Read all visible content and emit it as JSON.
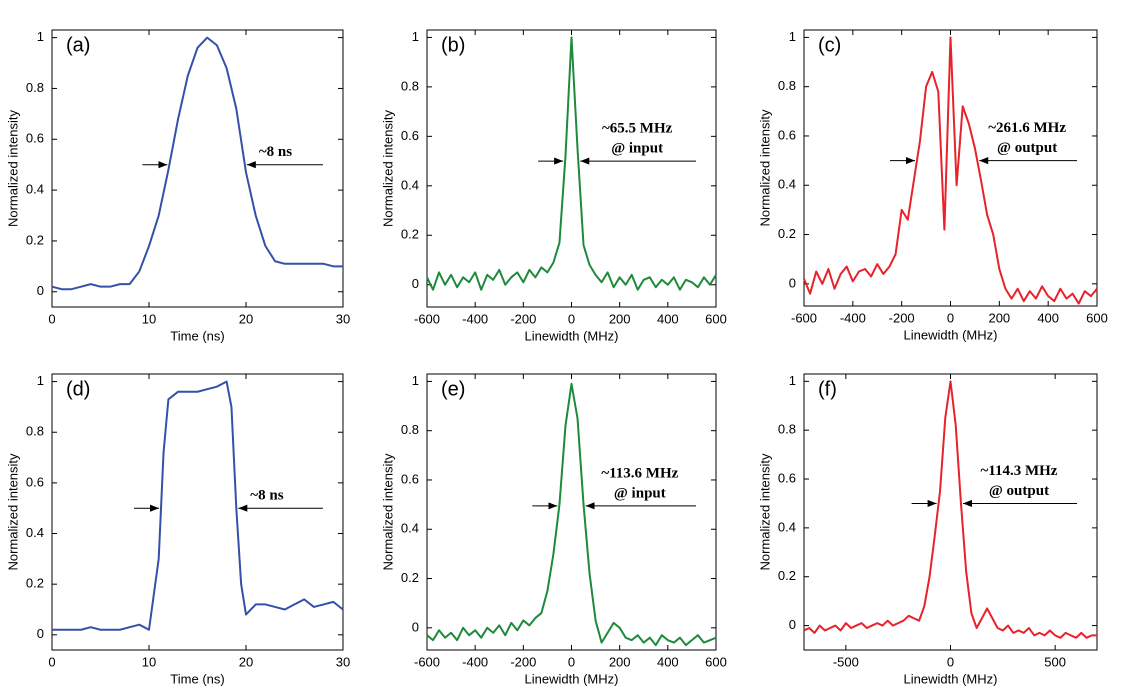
{
  "chart_data": [
    {
      "type": "line",
      "panel_label": "(a)",
      "xlabel": "Time (ns)",
      "ylabel": "Normalized intensity",
      "color": "#3550a8",
      "xlim": [
        0,
        30
      ],
      "ylim": [
        -0.06,
        1.03
      ],
      "xticks": [
        0,
        10,
        20,
        30
      ],
      "yticks": [
        0,
        0.2,
        0.4,
        0.6,
        0.8,
        1
      ],
      "annotation": [
        "~8 ns"
      ],
      "x": [
        0,
        1,
        2,
        3,
        4,
        5,
        6,
        7,
        8,
        9,
        10,
        11,
        12,
        13,
        14,
        15,
        16,
        17,
        18,
        19,
        20,
        21,
        22,
        23,
        24,
        25,
        26,
        27,
        28,
        29,
        30
      ],
      "values": [
        0.02,
        0.01,
        0.01,
        0.02,
        0.03,
        0.02,
        0.02,
        0.03,
        0.03,
        0.08,
        0.18,
        0.3,
        0.48,
        0.68,
        0.85,
        0.96,
        1.0,
        0.97,
        0.88,
        0.72,
        0.47,
        0.3,
        0.18,
        0.12,
        0.11,
        0.11,
        0.11,
        0.11,
        0.11,
        0.1,
        0.1
      ]
    },
    {
      "type": "line",
      "panel_label": "(b)",
      "xlabel": "Linewidth (MHz)",
      "ylabel": "Normalized intensity",
      "color": "#1e8a3c",
      "xlim": [
        -600,
        600
      ],
      "ylim": [
        -0.09,
        1.03
      ],
      "xticks": [
        -600,
        -400,
        -200,
        0,
        200,
        400,
        600
      ],
      "yticks": [
        0,
        0.2,
        0.4,
        0.6,
        0.8,
        1
      ],
      "annotation": [
        "~65.5 MHz",
        "@ input"
      ],
      "x": [
        -600,
        -575,
        -550,
        -525,
        -500,
        -475,
        -450,
        -425,
        -400,
        -375,
        -350,
        -325,
        -300,
        -275,
        -250,
        -225,
        -200,
        -175,
        -150,
        -125,
        -100,
        -75,
        -50,
        -25,
        0,
        25,
        50,
        75,
        100,
        125,
        150,
        175,
        200,
        225,
        250,
        275,
        300,
        325,
        350,
        375,
        400,
        425,
        450,
        475,
        500,
        525,
        550,
        575,
        600
      ],
      "values": [
        0.03,
        -0.02,
        0.05,
        0.0,
        0.04,
        -0.01,
        0.03,
        0.01,
        0.05,
        -0.02,
        0.04,
        0.02,
        0.06,
        0.0,
        0.03,
        0.05,
        0.01,
        0.06,
        0.03,
        0.07,
        0.05,
        0.09,
        0.17,
        0.52,
        1.0,
        0.55,
        0.16,
        0.08,
        0.04,
        0.01,
        0.05,
        -0.01,
        0.03,
        0.0,
        0.04,
        -0.02,
        0.02,
        0.03,
        -0.01,
        0.02,
        0.0,
        0.03,
        -0.02,
        0.02,
        0.01,
        -0.01,
        0.03,
        0.0,
        0.04
      ]
    },
    {
      "type": "line",
      "panel_label": "(c)",
      "xlabel": "Linewidth (MHz)",
      "ylabel": "Normalized intensity",
      "color": "#e8222a",
      "xlim": [
        -600,
        600
      ],
      "ylim": [
        -0.09,
        1.03
      ],
      "xticks": [
        -600,
        -400,
        -200,
        0,
        200,
        400,
        600
      ],
      "yticks": [
        0,
        0.2,
        0.4,
        0.6,
        0.8,
        1
      ],
      "annotation": [
        "~261.6 MHz",
        "@ output"
      ],
      "x": [
        -600,
        -575,
        -550,
        -525,
        -500,
        -475,
        -450,
        -425,
        -400,
        -375,
        -350,
        -325,
        -300,
        -275,
        -250,
        -225,
        -200,
        -175,
        -150,
        -125,
        -100,
        -75,
        -50,
        -25,
        0,
        25,
        50,
        75,
        100,
        125,
        150,
        175,
        200,
        225,
        250,
        275,
        300,
        325,
        350,
        375,
        400,
        425,
        450,
        475,
        500,
        525,
        550,
        575,
        600
      ],
      "values": [
        0.02,
        -0.04,
        0.05,
        0.0,
        0.06,
        -0.02,
        0.04,
        0.07,
        0.01,
        0.05,
        0.06,
        0.03,
        0.08,
        0.04,
        0.07,
        0.12,
        0.3,
        0.26,
        0.42,
        0.58,
        0.8,
        0.86,
        0.78,
        0.22,
        1.0,
        0.4,
        0.72,
        0.65,
        0.55,
        0.42,
        0.28,
        0.2,
        0.06,
        -0.02,
        -0.06,
        -0.02,
        -0.07,
        -0.03,
        -0.06,
        -0.01,
        -0.05,
        -0.07,
        -0.02,
        -0.06,
        -0.04,
        -0.08,
        -0.03,
        -0.05,
        -0.02
      ]
    },
    {
      "type": "line",
      "panel_label": "(d)",
      "xlabel": "Time (ns)",
      "ylabel": "Normalized intensity",
      "color": "#3550a8",
      "xlim": [
        0,
        30
      ],
      "ylim": [
        -0.06,
        1.03
      ],
      "xticks": [
        0,
        10,
        20,
        30
      ],
      "yticks": [
        0,
        0.2,
        0.4,
        0.6,
        0.8,
        1
      ],
      "annotation": [
        "~8 ns"
      ],
      "x": [
        0,
        1,
        2,
        3,
        4,
        5,
        6,
        7,
        8,
        9,
        10,
        11,
        11.5,
        12,
        13,
        14,
        15,
        16,
        17,
        18,
        18.5,
        19,
        19.5,
        20,
        21,
        22,
        23,
        24,
        25,
        26,
        27,
        28,
        29,
        30
      ],
      "values": [
        0.02,
        0.02,
        0.02,
        0.02,
        0.03,
        0.02,
        0.02,
        0.02,
        0.03,
        0.04,
        0.02,
        0.3,
        0.72,
        0.93,
        0.96,
        0.96,
        0.96,
        0.97,
        0.98,
        1.0,
        0.9,
        0.5,
        0.2,
        0.08,
        0.12,
        0.12,
        0.11,
        0.1,
        0.12,
        0.14,
        0.11,
        0.12,
        0.13,
        0.1
      ]
    },
    {
      "type": "line",
      "panel_label": "(e)",
      "xlabel": "Linewidth (MHz)",
      "ylabel": "Normalized intensity",
      "color": "#1e8a3c",
      "xlim": [
        -600,
        600
      ],
      "ylim": [
        -0.09,
        1.03
      ],
      "xticks": [
        -600,
        -400,
        -200,
        0,
        200,
        400,
        600
      ],
      "yticks": [
        0,
        0.2,
        0.4,
        0.6,
        0.8,
        1
      ],
      "annotation": [
        "~113.6 MHz",
        "@ input"
      ],
      "x": [
        -600,
        -575,
        -550,
        -525,
        -500,
        -475,
        -450,
        -425,
        -400,
        -375,
        -350,
        -325,
        -300,
        -275,
        -250,
        -225,
        -200,
        -175,
        -150,
        -125,
        -100,
        -75,
        -50,
        -25,
        0,
        25,
        50,
        75,
        100,
        125,
        150,
        175,
        200,
        225,
        250,
        275,
        300,
        325,
        350,
        375,
        400,
        425,
        450,
        475,
        500,
        525,
        550,
        575,
        600
      ],
      "values": [
        -0.03,
        -0.05,
        -0.01,
        -0.04,
        -0.02,
        -0.05,
        0.0,
        -0.03,
        -0.01,
        -0.04,
        0.0,
        -0.02,
        0.01,
        -0.03,
        0.02,
        -0.01,
        0.03,
        0.01,
        0.04,
        0.06,
        0.15,
        0.3,
        0.5,
        0.82,
        0.99,
        0.85,
        0.5,
        0.22,
        0.03,
        -0.06,
        -0.02,
        0.02,
        0.0,
        -0.04,
        -0.05,
        -0.03,
        -0.06,
        -0.04,
        -0.07,
        -0.03,
        -0.05,
        -0.06,
        -0.04,
        -0.07,
        -0.05,
        -0.03,
        -0.06,
        -0.05,
        -0.04
      ]
    },
    {
      "type": "line",
      "panel_label": "(f)",
      "xlabel": "Linewidth (MHz)",
      "ylabel": "Normalized intensity",
      "color": "#e8222a",
      "xlim": [
        -700,
        700
      ],
      "ylim": [
        -0.1,
        1.03
      ],
      "xticks": [
        -500,
        0,
        500
      ],
      "yticks": [
        0,
        0.2,
        0.4,
        0.6,
        0.8,
        1
      ],
      "annotation": [
        "~114.3 MHz",
        "@ output"
      ],
      "x": [
        -700,
        -675,
        -650,
        -625,
        -600,
        -575,
        -550,
        -525,
        -500,
        -475,
        -450,
        -425,
        -400,
        -375,
        -350,
        -325,
        -300,
        -275,
        -250,
        -225,
        -200,
        -175,
        -150,
        -125,
        -100,
        -75,
        -50,
        -25,
        0,
        25,
        50,
        75,
        100,
        125,
        150,
        175,
        200,
        225,
        250,
        275,
        300,
        325,
        350,
        375,
        400,
        425,
        450,
        475,
        500,
        525,
        550,
        575,
        600,
        625,
        650,
        675,
        700
      ],
      "values": [
        -0.02,
        -0.01,
        -0.03,
        0.0,
        -0.02,
        -0.01,
        0.0,
        -0.02,
        0.01,
        -0.01,
        0.0,
        0.01,
        -0.01,
        0.0,
        0.01,
        0.0,
        0.02,
        0.0,
        0.01,
        0.02,
        0.04,
        0.03,
        0.02,
        0.08,
        0.2,
        0.37,
        0.55,
        0.85,
        1.0,
        0.82,
        0.5,
        0.22,
        0.05,
        -0.01,
        0.03,
        0.07,
        0.03,
        -0.01,
        -0.02,
        0.0,
        -0.03,
        -0.02,
        -0.03,
        -0.01,
        -0.04,
        -0.03,
        -0.04,
        -0.02,
        -0.04,
        -0.05,
        -0.03,
        -0.04,
        -0.05,
        -0.03,
        -0.05,
        -0.04,
        -0.04
      ]
    }
  ]
}
